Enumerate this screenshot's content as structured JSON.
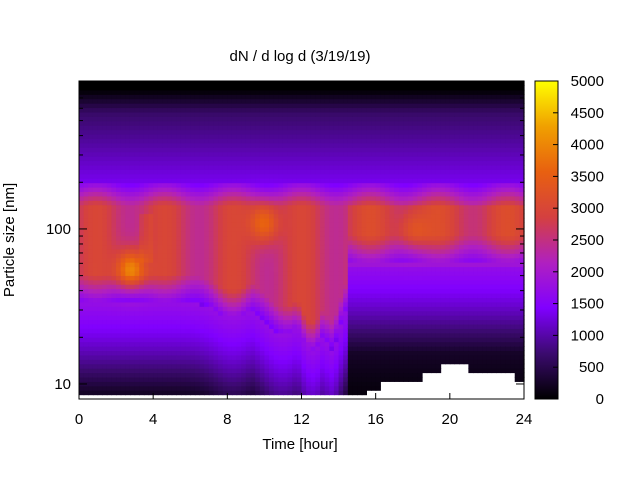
{
  "chart_data": {
    "type": "heatmap",
    "title": "dN / d log d (3/19/19)",
    "xlabel": "Time [hour]",
    "ylabel": "Particle size [nm]",
    "xlim": [
      0,
      24
    ],
    "xticks": [
      "0",
      "4",
      "8",
      "12",
      "16",
      "20",
      "24"
    ],
    "yscale": "log",
    "ylim": [
      8,
      900
    ],
    "yticks": [
      "10",
      "100"
    ],
    "colorbar": {
      "range": [
        0,
        5000
      ],
      "ticks": [
        "0",
        "500",
        "1000",
        "1500",
        "2000",
        "2500",
        "3000",
        "3500",
        "4000",
        "4500",
        "5000"
      ],
      "colormap": [
        "#000000",
        "#3b0a6e",
        "#8000ff",
        "#b020c0",
        "#d44040",
        "#e86010",
        "#f0a000",
        "#ffff00"
      ]
    },
    "features": [
      {
        "time": 2.8,
        "size_nm": 55,
        "peak_value": 4300
      },
      {
        "time": 10.0,
        "size_nm": 110,
        "peak_value": 3900
      },
      {
        "time": 18.0,
        "size_nm": 100,
        "peak_value": 3300
      }
    ],
    "grid": false
  }
}
